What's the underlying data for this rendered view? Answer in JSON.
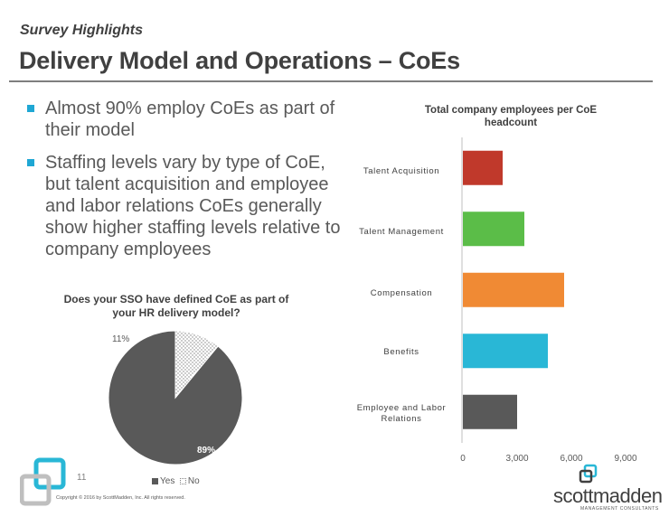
{
  "header": {
    "section_label": "Survey Highlights",
    "title": "Delivery Model and Operations – CoEs"
  },
  "bullets": [
    "Almost 90% employ CoEs as part of their model",
    "Staffing levels vary by type of CoE, but talent acquisition and employee and labor relations CoEs generally show higher staffing levels relative to company employees"
  ],
  "chart_data": [
    {
      "type": "pie",
      "title": "Does your SSO have defined CoE as part of your HR delivery model?",
      "slices": [
        {
          "label": "Yes",
          "value": 89,
          "display": "89%",
          "color": "#595959"
        },
        {
          "label": "No",
          "value": 11,
          "display": "11%",
          "color": "#ffffff"
        }
      ],
      "legend": [
        "Yes",
        "No"
      ],
      "legend_position": "bottom"
    },
    {
      "type": "bar",
      "orientation": "horizontal",
      "title": "Total company employees per CoE headcount",
      "categories": [
        "Talent Acquisition",
        "Talent Management",
        "Compensation",
        "Benefits",
        "Employee and Labor Relations"
      ],
      "values": [
        2200,
        3400,
        5600,
        4700,
        3000
      ],
      "colors": [
        "#c0392b",
        "#5bbd48",
        "#f08a34",
        "#29b7d6",
        "#595959"
      ],
      "xlim": [
        0,
        9000
      ],
      "xticks": [
        "0",
        "3,000",
        "6,000",
        "9,000"
      ],
      "xtick_values": [
        0,
        3000,
        6000,
        9000
      ]
    }
  ],
  "footer": {
    "page_number": "11",
    "copyright": "Copyright © 2016 by ScottMadden, Inc. All rights reserved.",
    "brand_name": "scottmadden",
    "brand_tag": "MANAGEMENT CONSULTANTS"
  }
}
